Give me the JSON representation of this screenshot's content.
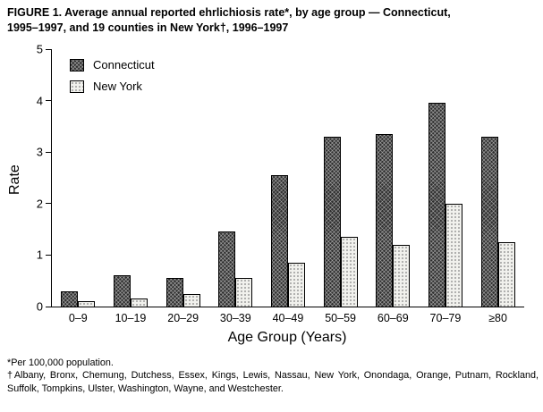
{
  "title": {
    "line1": "FIGURE 1. Average annual reported ehrlichiosis rate*, by age group — Connecticut,",
    "line2": "1995–1997, and 19 counties in New York†, 1996–1997"
  },
  "axes": {
    "y_label": "Rate",
    "x_label": "Age Group (Years)"
  },
  "footnotes": {
    "line1": "*Per 100,000 population.",
    "line2": "†Albany, Bronx, Chemung, Dutchess, Essex, Kings, Lewis, Nassau, New York, Onondaga, Orange, Putnam, Rockland, Suffolk, Tompkins, Ulster, Washington, Wayne, and Westchester."
  },
  "chart_data": {
    "type": "bar",
    "title": "Average annual reported ehrlichiosis rate, by age group — Connecticut, 1995–1997, and 19 counties in New York, 1996–1997",
    "categories": [
      "0–9",
      "10–19",
      "20–29",
      "30–39",
      "40–49",
      "50–59",
      "60–69",
      "70–79",
      "≥80"
    ],
    "series": [
      {
        "name": "Connecticut",
        "values": [
          0.3,
          0.6,
          0.55,
          1.45,
          2.55,
          3.3,
          3.35,
          3.95,
          3.3
        ]
      },
      {
        "name": "New York",
        "values": [
          0.1,
          0.15,
          0.25,
          0.55,
          0.85,
          1.35,
          1.2,
          2.0,
          1.25
        ]
      }
    ],
    "xlabel": "Age Group (Years)",
    "ylabel": "Rate",
    "ylim": [
      0,
      5
    ],
    "yticks": [
      0,
      1,
      2,
      3,
      4,
      5
    ],
    "legend_position": "top-left-inside",
    "grid": false,
    "bar_colors": {
      "Connecticut": "#2e2e2e",
      "New York": "#f1f1ed"
    }
  }
}
